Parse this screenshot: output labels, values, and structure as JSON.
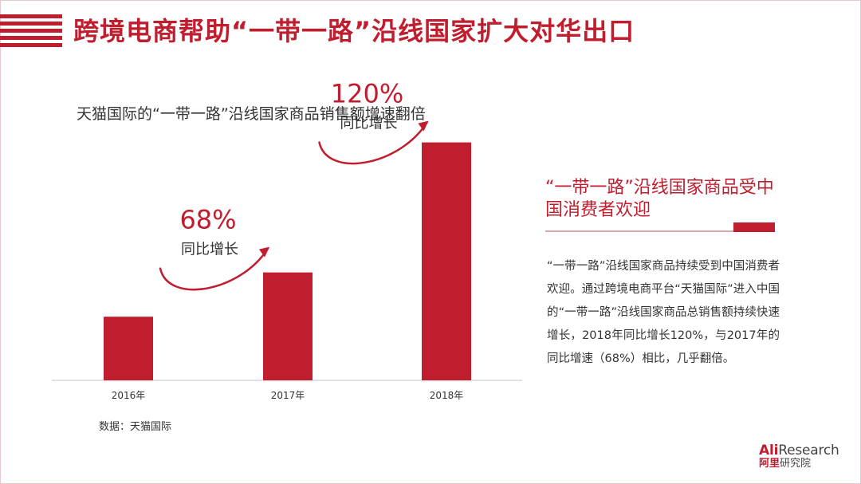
{
  "page": {
    "title": "跨境电商帮助“一带一路”沿线国家扩大对华出口",
    "accent_color": "#c01d2e"
  },
  "chart_data": {
    "type": "bar",
    "title": "天猫国际的“一带一路”沿线国家商品销售额增速翻倍",
    "categories": [
      "2016年",
      "2017年",
      "2018年"
    ],
    "values": [
      23,
      39,
      86
    ],
    "ylim": [
      0,
      100
    ],
    "bar_color": "#c01d2e",
    "annotations": [
      {
        "value": "68%",
        "label": "同比增长",
        "between": [
          "2016年",
          "2017年"
        ]
      },
      {
        "value": "120%",
        "label": "同比增长",
        "between": [
          "2017年",
          "2018年"
        ]
      }
    ],
    "source": "数据：天猫国际"
  },
  "sidebar": {
    "heading": "“一带一路”沿线国家商品受中国消费者欢迎",
    "body": "“一带一路”沿线国家商品持续受到中国消费者欢迎。通过跨境电商平台“天猫国际”进入中国的“一带一路”沿线国家商品总销售额持续快速增长，2018年同比增长120%，与2017年的同比增速（68%）相比，几乎翻倍。"
  },
  "logo": {
    "brand_red": "Ali",
    "brand_rest": "Research",
    "sub_red": "阿里",
    "sub_rest": "研究院"
  }
}
